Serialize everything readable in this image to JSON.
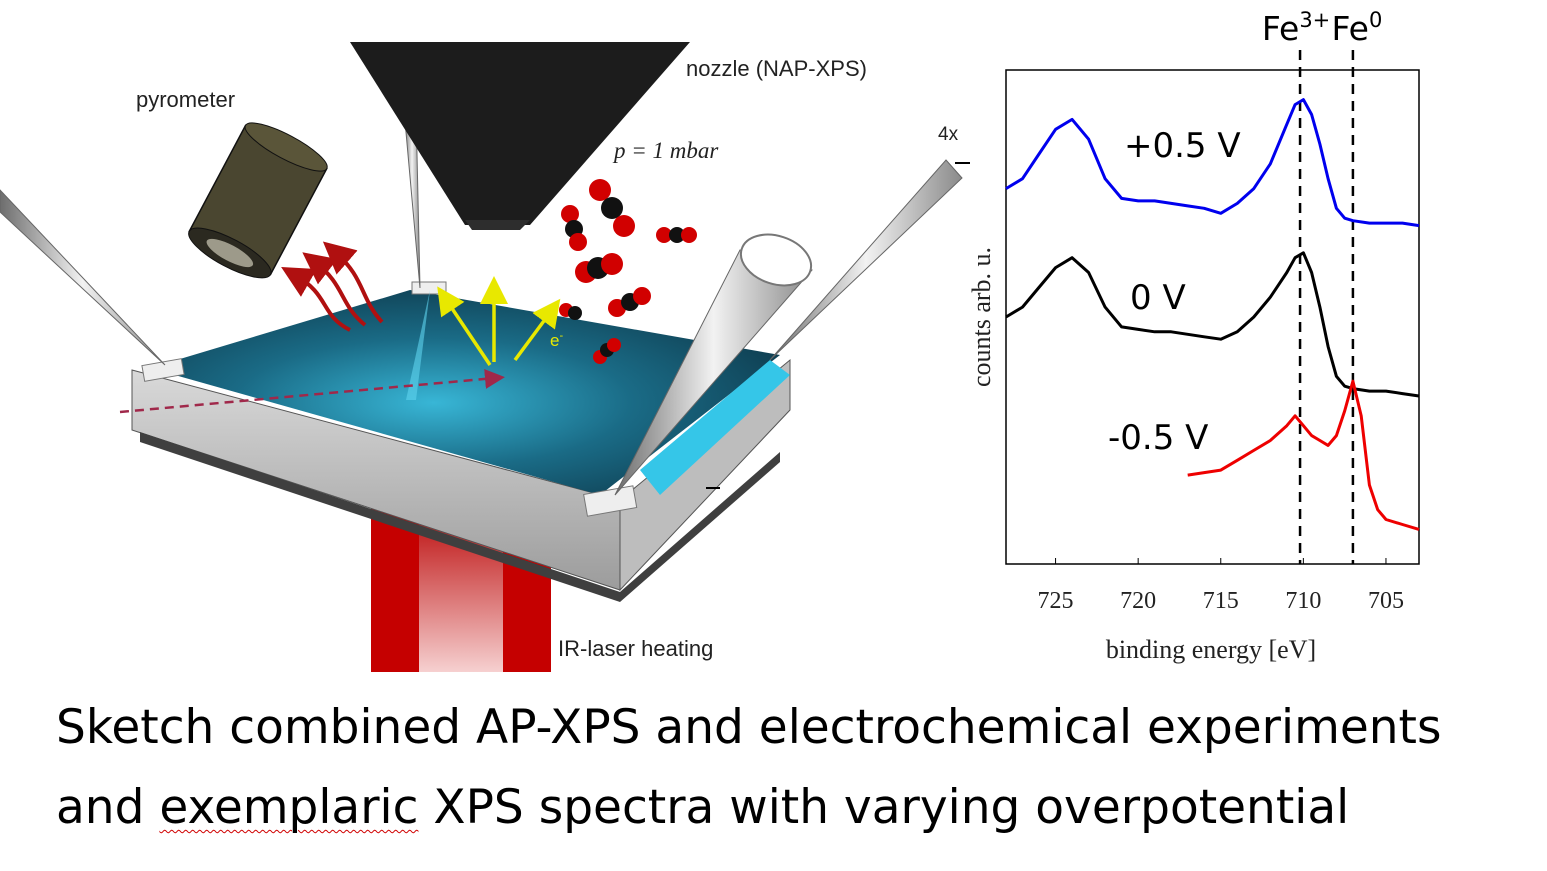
{
  "sketch": {
    "labels": {
      "nozzle": "nozzle (NAP-XPS)",
      "pyrometer": "pyrometer",
      "pressure": "p = 1 mbar",
      "electron": "e",
      "electron_sup": "-",
      "magnification": "4x",
      "laser": "IR-laser heating"
    },
    "colors": {
      "sample_surface": "#0a3a4a",
      "sample_highlight": "#39c6e6",
      "laser_red": "#c80000",
      "heat_arrows": "#b01010",
      "emission_arrows": "#e8e800",
      "molecule_red": "#d10000",
      "molecule_black": "#111111",
      "pyrometer": "#4a4630",
      "nozzle": "#1c1c1c"
    }
  },
  "chart_data": {
    "type": "line",
    "ylabel": "counts arb. u.",
    "xlabel": "binding energy [eV]",
    "xlim": [
      728,
      703
    ],
    "x_reversed": true,
    "xticks": [
      725,
      720,
      715,
      710,
      705
    ],
    "reference_lines": [
      {
        "x": 710.2,
        "label": "Fe",
        "sup": "3+",
        "style": "dashed"
      },
      {
        "x": 707.0,
        "label": "Fe",
        "sup": "0",
        "style": "dashed"
      }
    ],
    "series": [
      {
        "name": "+0.5 V",
        "color": "#0000ee",
        "x": [
          728,
          727,
          726,
          725,
          724,
          723,
          722,
          721,
          720,
          719,
          718,
          717,
          716,
          715,
          714,
          713,
          712,
          711,
          710.5,
          710,
          709.5,
          709,
          708.5,
          708,
          707.5,
          707,
          706,
          705,
          704,
          703
        ],
        "y": [
          0.76,
          0.78,
          0.83,
          0.88,
          0.9,
          0.86,
          0.78,
          0.74,
          0.735,
          0.735,
          0.73,
          0.725,
          0.72,
          0.71,
          0.73,
          0.76,
          0.81,
          0.89,
          0.93,
          0.94,
          0.91,
          0.85,
          0.78,
          0.72,
          0.7,
          0.695,
          0.69,
          0.69,
          0.69,
          0.685
        ]
      },
      {
        "name": "0 V",
        "color": "#000000",
        "x": [
          728,
          727,
          726,
          725,
          724,
          723,
          722,
          721,
          720,
          719,
          718,
          717,
          716,
          715,
          714,
          713,
          712,
          711,
          710.5,
          710,
          709.5,
          709,
          708.5,
          708,
          707.5,
          707,
          706,
          705,
          704,
          703
        ],
        "y": [
          0.5,
          0.52,
          0.56,
          0.6,
          0.62,
          0.59,
          0.52,
          0.48,
          0.475,
          0.47,
          0.47,
          0.465,
          0.46,
          0.455,
          0.47,
          0.5,
          0.54,
          0.59,
          0.62,
          0.63,
          0.59,
          0.52,
          0.44,
          0.38,
          0.36,
          0.355,
          0.35,
          0.35,
          0.345,
          0.34
        ]
      },
      {
        "name": "-0.5 V",
        "color": "#ee0000",
        "x": [
          717,
          716,
          715,
          714,
          713,
          712,
          711,
          710.5,
          710,
          709.5,
          709,
          708.5,
          708,
          707.5,
          707,
          706.5,
          706,
          705.5,
          705,
          704,
          703
        ],
        "y": [
          0.18,
          0.185,
          0.19,
          0.21,
          0.23,
          0.25,
          0.28,
          0.3,
          0.28,
          0.26,
          0.25,
          0.24,
          0.26,
          0.31,
          0.37,
          0.3,
          0.16,
          0.11,
          0.09,
          0.08,
          0.07
        ]
      }
    ],
    "annotations": [
      "+0.5 V",
      "0 V",
      "-0.5 V"
    ],
    "grid": false,
    "legend": "none"
  },
  "caption": {
    "line1": "Sketch combined AP-XPS and electrochemical experiments",
    "line2_prefix": "and ",
    "line2_flagged": "exemplaric",
    "line2_suffix": " XPS spectra with varying overpotential"
  }
}
